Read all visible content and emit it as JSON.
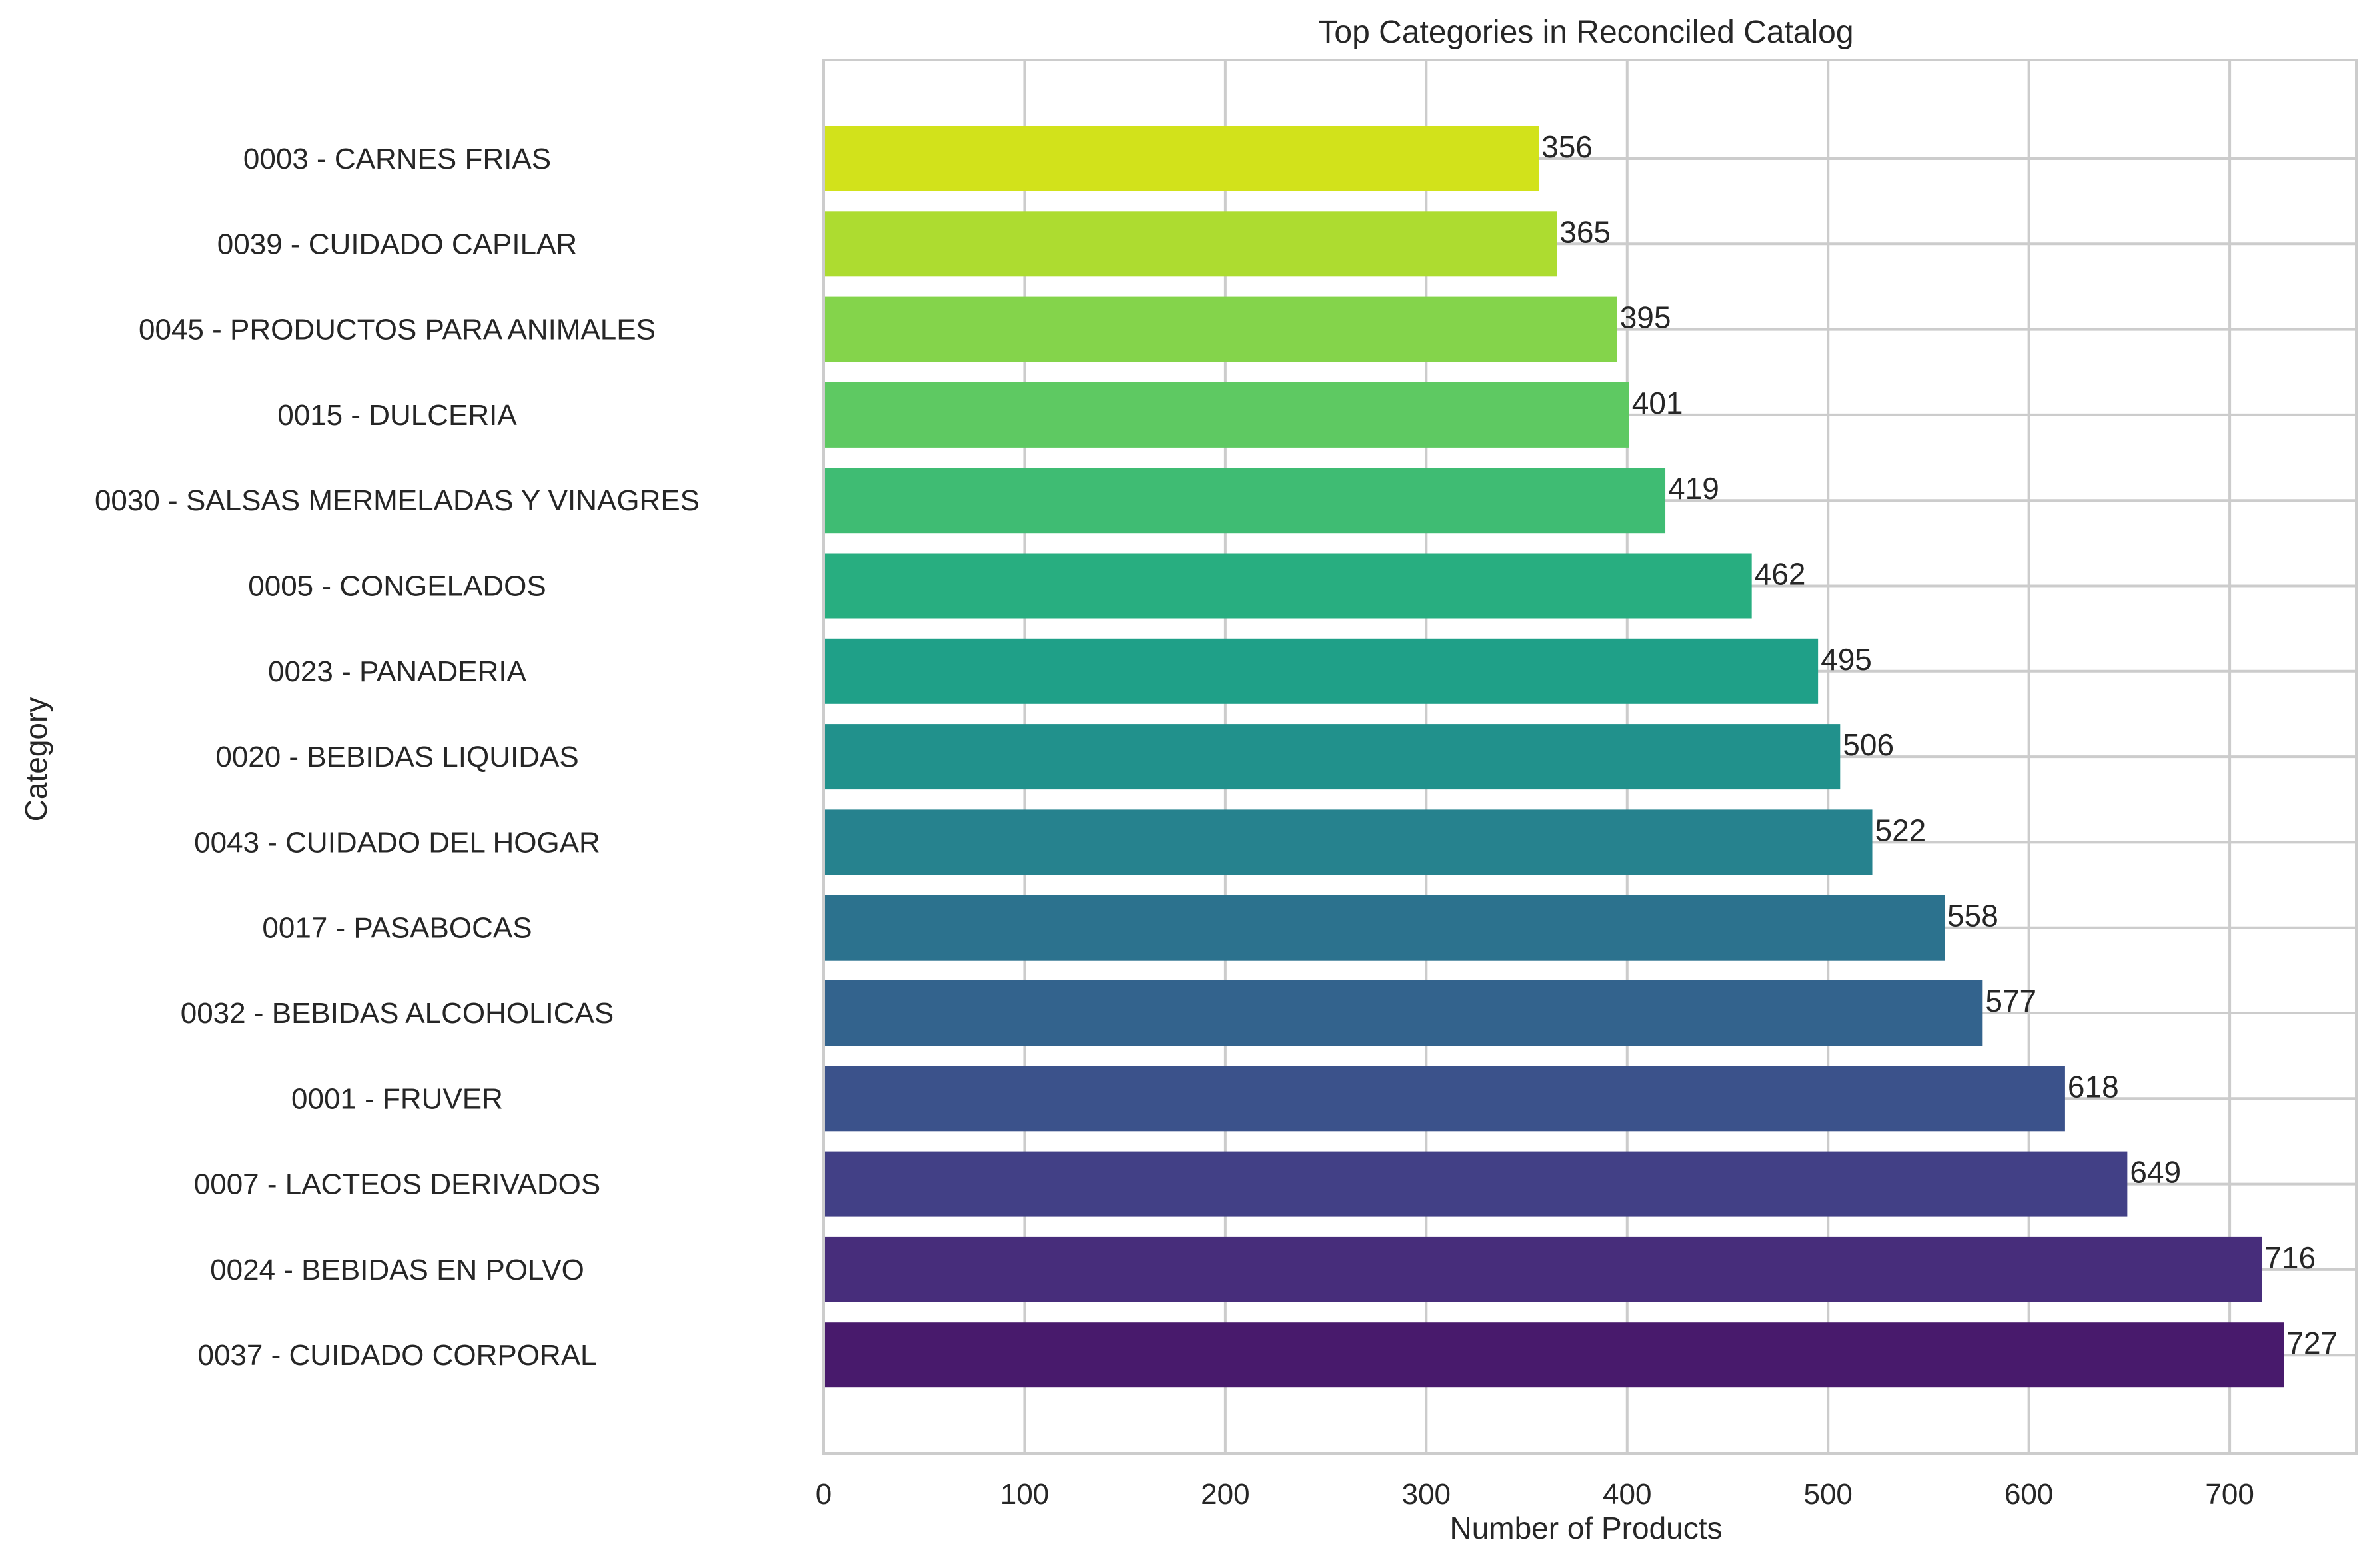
{
  "chart_data": {
    "type": "bar",
    "orientation": "horizontal",
    "title": "Top Categories in Reconciled Catalog",
    "xlabel": "Number of Products",
    "ylabel": "Category",
    "xlim": [
      0,
      763
    ],
    "xticks": [
      0,
      100,
      200,
      300,
      400,
      500,
      600,
      700
    ],
    "xtick_labels": [
      "0",
      "100",
      "200",
      "300",
      "400",
      "500",
      "600",
      "700"
    ],
    "grid": true,
    "categories": [
      "0003 - CARNES FRIAS",
      "0039 - CUIDADO CAPILAR",
      "0045 - PRODUCTOS PARA ANIMALES",
      "0015 - DULCERIA",
      "0030 - SALSAS MERMELADAS Y VINAGRES",
      "0005 - CONGELADOS",
      "0023 - PANADERIA",
      "0020 - BEBIDAS LIQUIDAS",
      "0043 - CUIDADO DEL HOGAR",
      "0017 - PASABOCAS",
      "0032 - BEBIDAS ALCOHOLICAS",
      "0001 - FRUVER",
      "0007 - LACTEOS DERIVADOS",
      "0024 - BEBIDAS EN POLVO",
      "0037 - CUIDADO CORPORAL"
    ],
    "values": [
      356,
      365,
      395,
      401,
      419,
      462,
      495,
      506,
      522,
      558,
      577,
      618,
      649,
      716,
      727
    ],
    "value_labels": [
      "356",
      "365",
      "395",
      "401",
      "419",
      "462",
      "495",
      "506",
      "522",
      "558",
      "577",
      "618",
      "649",
      "716",
      "727"
    ],
    "colors": [
      "#d2e21b",
      "#addc30",
      "#84d44b",
      "#5ec962",
      "#3fbc73",
      "#28ae80",
      "#1fa088",
      "#21918c",
      "#26828e",
      "#2c728e",
      "#33638d",
      "#3b528b",
      "#424086",
      "#472d7b",
      "#481a6c"
    ]
  }
}
